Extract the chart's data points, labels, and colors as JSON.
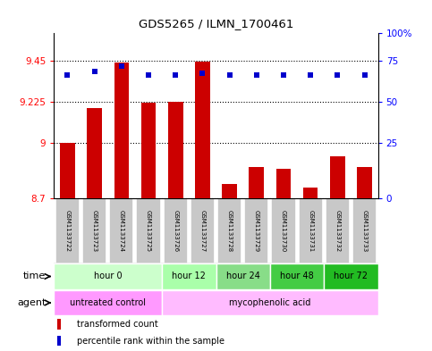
{
  "title": "GDS5265 / ILMN_1700461",
  "samples": [
    "GSM1133722",
    "GSM1133723",
    "GSM1133724",
    "GSM1133725",
    "GSM1133726",
    "GSM1133727",
    "GSM1133728",
    "GSM1133729",
    "GSM1133730",
    "GSM1133731",
    "GSM1133732",
    "GSM1133733"
  ],
  "transformed_count": [
    9.0,
    9.19,
    9.44,
    9.22,
    9.225,
    9.445,
    8.78,
    8.87,
    8.86,
    8.76,
    8.93,
    8.87
  ],
  "percentile_rank": [
    75,
    77,
    80,
    75,
    75,
    76,
    75,
    75,
    75,
    75,
    75,
    75
  ],
  "ylim_left": [
    8.7,
    9.6
  ],
  "yticks_left": [
    8.7,
    9.0,
    9.225,
    9.45
  ],
  "ytick_labels_left": [
    "8.7",
    "9",
    "9.225",
    "9.45"
  ],
  "yticks_right_vals": [
    0,
    25,
    50,
    75,
    100
  ],
  "yticks_right_pos": [
    8.7,
    9.0,
    9.225,
    9.45,
    9.6
  ],
  "yticks_right_labels": [
    "0",
    "25",
    "50",
    "75",
    "100%"
  ],
  "bar_color": "#cc0000",
  "dot_color": "#0000cc",
  "time_groups": [
    {
      "label": "hour 0",
      "start": 0,
      "end": 3,
      "color": "#ccffcc"
    },
    {
      "label": "hour 12",
      "start": 4,
      "end": 5,
      "color": "#aaffaa"
    },
    {
      "label": "hour 24",
      "start": 6,
      "end": 7,
      "color": "#88dd88"
    },
    {
      "label": "hour 48",
      "start": 8,
      "end": 9,
      "color": "#44cc44"
    },
    {
      "label": "hour 72",
      "start": 10,
      "end": 11,
      "color": "#22bb22"
    }
  ],
  "agent_groups": [
    {
      "label": "untreated control",
      "start": 0,
      "end": 3,
      "color": "#ff99ff"
    },
    {
      "label": "mycophenolic acid",
      "start": 4,
      "end": 11,
      "color": "#ffbbff"
    }
  ],
  "legend_bar_label": "transformed count",
  "legend_dot_label": "percentile rank within the sample",
  "time_label": "time",
  "agent_label": "agent",
  "background_color": "#ffffff",
  "sample_box_color": "#c8c8c8",
  "border_color": "#000000"
}
